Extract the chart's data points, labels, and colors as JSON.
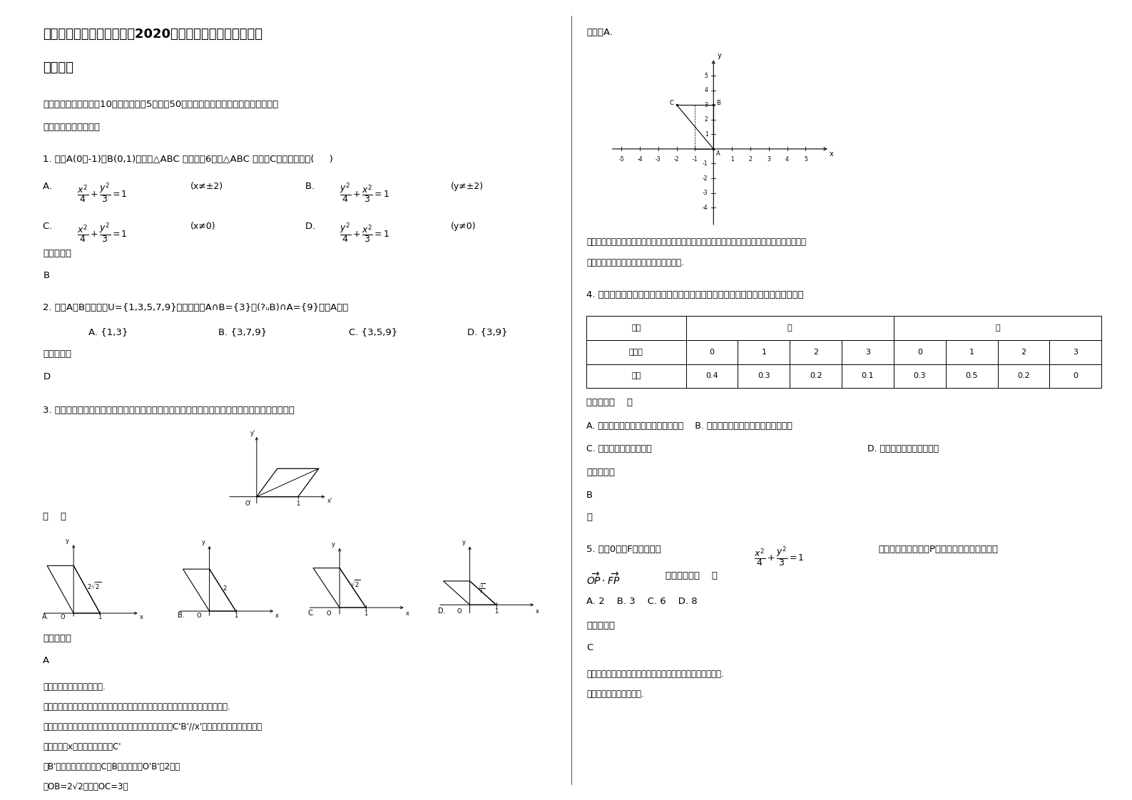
{
  "bg_color": "#ffffff",
  "LM": 0.038,
  "RM": 0.518,
  "col_split": 0.505,
  "title_line1": "湖北省咸宁市温泉高级中学2020年高二数学文下学期期末试",
  "title_line2": "卷含解析",
  "sec1": "一、选择题：本大题共10小题，每小题5分，共50分。在每小题给出的四个选项中，只有",
  "sec1b": "是一个符合题目要求的",
  "q1": "1. 已知A(0，-1)，B(0,1)两点，△ABC 的周长为6，则△ABC 的顶点C的轨迹方程是(     )",
  "q2_text": "2. 已知A，B均为集合U={1,3,5,7,9}的子集，且A∩B={3}，(?ᵤB)∩A={9}，则A等于",
  "q2_opts": [
    "A. {1,3}",
    "B. {3,7,9}",
    "C. {3,5,9}",
    "D. {3,9}"
  ],
  "ans_label": "参考答案：",
  "q3_text": "3. 用斜二测画法画一个水平放置的平面图形的直观图为如右图所示的一个正方形，则原来的图形为",
  "q3_bracket": "（    ）",
  "q3_ans": "A",
  "q3_note1": "【考点】平面图形的直观图.",
  "q3_note2": "【分析】根据题目给出的直观图的形状，画出对应的原平面图形的形状，则问题可求.",
  "q3_note3": "【解答】解：作出该直观图的原图形，因为直观图中的线段C'B'//x'轴，所以在原图形中对应的",
  "q3_note4": "线段平行于x轴且长度不变，点C'",
  "q3_note5": "和B'在原图形中对应的点C和B的纵坐标是O'B'的2倍，",
  "q3_note6": "则OB=2√2，所以OC=3，",
  "right_guxuan": "故选：A.",
  "right_note1": "【点评】本题考查了平面图形的直观图，考查了数形结合思想，解答此题的关键是掌握平面图形的直",
  "right_note2": "观图的画法，能正确的画出直观图的原图形.",
  "q4_text": "4. 甲、乙两工人在同样的条件下生产，日产量相同，每天出废品的情况如下表所列：",
  "q4_conclusion": "则有结论（    ）",
  "q4_A": "A. 甲的产品质量比乙的产品质量好一些",
  "q4_B": "B. 乙的产品质量比甲的产品质量好一些",
  "q4_C": "C. 两人的产品质量一样好",
  "q4_D": "D. 无法判断谁的质量好一些",
  "q4_ans": "B",
  "q4_note": "略",
  "q5_pre": "5. 若点0和点F分别为椭圆",
  "q5_post": "的中心和左焦点，点P为椭圆上的任意一点，则",
  "q5_vec": "的最大值为（    ）",
  "q5_opts": "A. 2    B. 3    C. 6    D. 8",
  "q5_ans": "C",
  "q5_note1": "【考点】椭圆的标准方程；平面向量数量积的含义与物理意义.",
  "q5_note2": "【专题】综合题；压轴题."
}
